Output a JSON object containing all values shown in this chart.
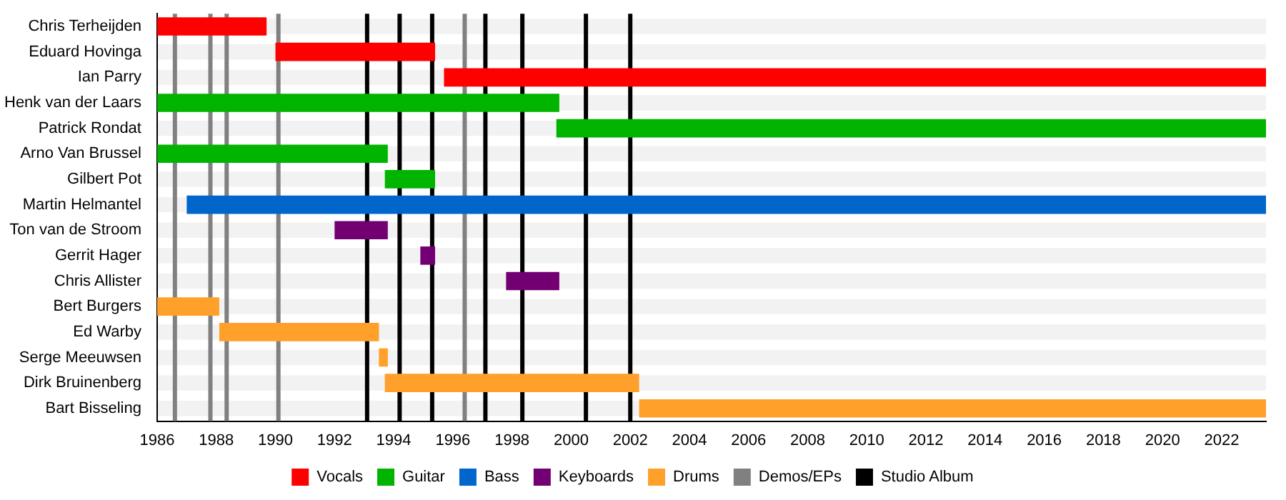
{
  "chart_data": {
    "type": "bar",
    "orientation": "horizontal",
    "categories": [
      "Chris Terheijden",
      "Eduard Hovinga",
      "Ian Parry",
      "Henk van der Laars",
      "Patrick Rondat",
      "Arno Van Brussel",
      "Gilbert Pot",
      "Martin Helmantel",
      "Ton van de Stroom",
      "Gerrit Hager",
      "Chris Allister",
      "Bert Burgers",
      "Ed Warby",
      "Serge Meeuwsen",
      "Dirk Bruinenberg",
      "Bart Bisseling"
    ],
    "series": [
      {
        "name": "Vocals",
        "color": "#ff0000",
        "base": [
          1986,
          1990.0,
          1995.7,
          null,
          null,
          null,
          null,
          null,
          null,
          null,
          null,
          null,
          null,
          null,
          null,
          null
        ],
        "values": [
          3.7,
          5.4,
          27.8,
          null,
          null,
          null,
          null,
          null,
          null,
          null,
          null,
          null,
          null,
          null,
          null,
          null
        ]
      },
      {
        "name": "Guitar",
        "color": "#00b400",
        "base": [
          null,
          null,
          null,
          1986,
          1999.5,
          1986,
          1993.7,
          null,
          null,
          null,
          null,
          null,
          null,
          null,
          null,
          null
        ],
        "values": [
          null,
          null,
          null,
          13.6,
          24.0,
          7.8,
          1.7,
          null,
          null,
          null,
          null,
          null,
          null,
          null,
          null,
          null
        ]
      },
      {
        "name": "Bass",
        "color": "#0066cc",
        "base": [
          null,
          null,
          null,
          null,
          null,
          null,
          null,
          1987.0,
          null,
          null,
          null,
          null,
          null,
          null,
          null,
          null
        ],
        "values": [
          null,
          null,
          null,
          null,
          null,
          null,
          null,
          36.5,
          null,
          null,
          null,
          null,
          null,
          null,
          null,
          null
        ]
      },
      {
        "name": "Keyboards",
        "color": "#730073",
        "base": [
          null,
          null,
          null,
          null,
          null,
          null,
          null,
          null,
          1992.0,
          1994.9,
          1997.8,
          null,
          null,
          null,
          null,
          null
        ],
        "values": [
          null,
          null,
          null,
          null,
          null,
          null,
          null,
          null,
          1.8,
          0.5,
          1.8,
          null,
          null,
          null,
          null,
          null
        ]
      },
      {
        "name": "Drums",
        "color": "#ffa02a",
        "base": [
          null,
          null,
          null,
          null,
          null,
          null,
          null,
          null,
          null,
          null,
          null,
          1986,
          1988.1,
          1993.5,
          1993.7,
          2002.3
        ],
        "values": [
          null,
          null,
          null,
          null,
          null,
          null,
          null,
          null,
          null,
          null,
          null,
          2.1,
          5.4,
          0.3,
          8.6,
          21.2
        ]
      }
    ],
    "xlim": [
      1986,
      2023.5
    ],
    "xticks": [
      1986,
      1988,
      1990,
      1992,
      1994,
      1996,
      1998,
      2000,
      2002,
      2004,
      2006,
      2008,
      2010,
      2012,
      2014,
      2016,
      2018,
      2020,
      2022
    ],
    "legend": "bottom",
    "ref_lines": [
      {
        "axis": "x",
        "value": 1986.6,
        "label": "Demos/EPs",
        "color": "#808080"
      },
      {
        "axis": "x",
        "value": 1987.8,
        "color": "#808080"
      },
      {
        "axis": "x",
        "value": 1988.35,
        "color": "#808080"
      },
      {
        "axis": "x",
        "value": 1990.1,
        "color": "#808080"
      },
      {
        "axis": "x",
        "value": 1996.4,
        "color": "#808080"
      },
      {
        "axis": "x",
        "value": 1993.1,
        "label": "Studio Album",
        "color": "#000000"
      },
      {
        "axis": "x",
        "value": 1994.2,
        "color": "#000000"
      },
      {
        "axis": "x",
        "value": 1995.3,
        "color": "#000000"
      },
      {
        "axis": "x",
        "value": 1997.1,
        "color": "#000000"
      },
      {
        "axis": "x",
        "value": 1998.35,
        "color": "#000000"
      },
      {
        "axis": "x",
        "value": 2000.5,
        "color": "#000000"
      },
      {
        "axis": "x",
        "value": 2002.0,
        "color": "#000000"
      }
    ]
  }
}
